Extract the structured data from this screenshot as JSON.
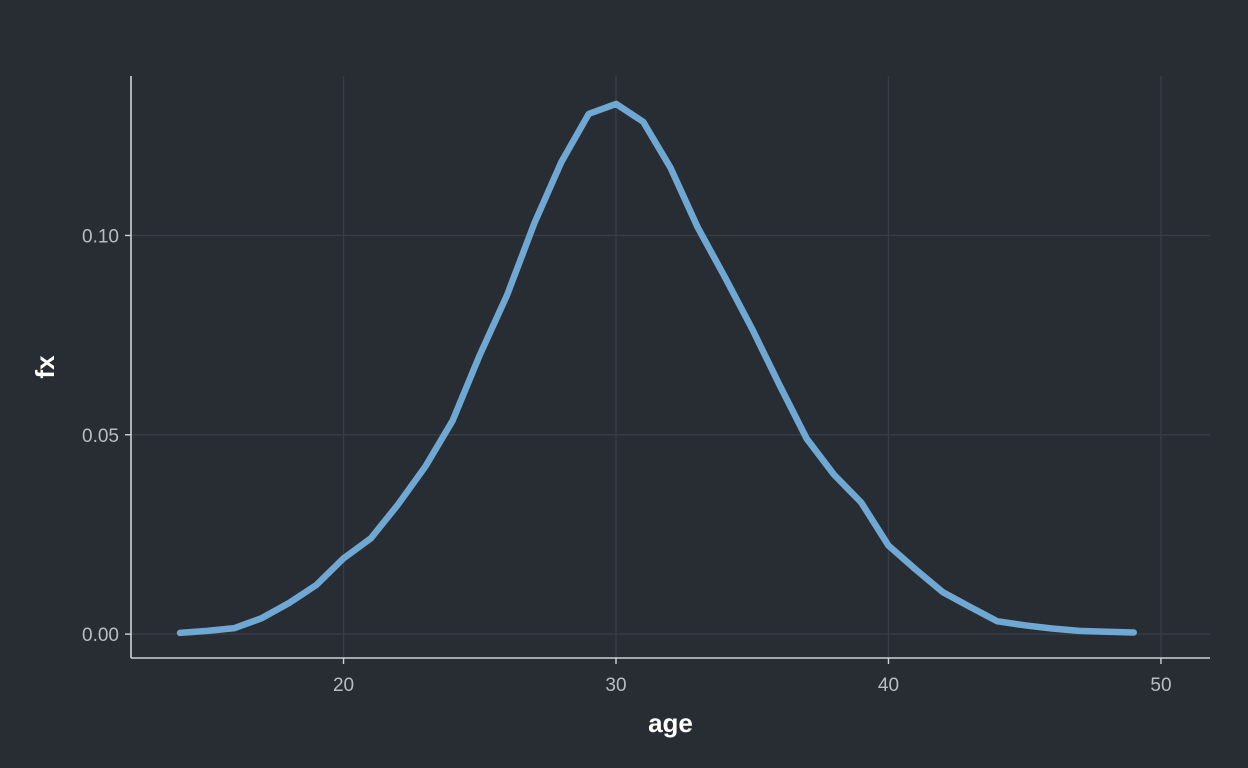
{
  "chart_data": {
    "type": "line",
    "title": "",
    "xlabel": "age",
    "ylabel": "fx",
    "xlim": [
      12.2,
      51.8
    ],
    "ylim": [
      -0.006,
      0.14
    ],
    "xticks": [
      20,
      30,
      40,
      50
    ],
    "yticks": [
      0.0,
      0.05,
      0.1
    ],
    "ytick_labels": [
      "0.00",
      "0.05",
      "0.10"
    ],
    "grid": true,
    "legend": "none",
    "line_color": "#6fa8d3",
    "background": "#282c33",
    "series": [
      {
        "x": [
          14,
          15,
          16,
          17,
          18,
          19,
          20,
          21,
          22,
          23,
          24,
          25,
          26,
          27,
          28,
          29,
          30,
          31,
          32,
          33,
          34,
          35,
          36,
          37,
          38,
          39,
          40,
          41,
          42,
          43,
          44,
          45,
          46,
          47,
          48,
          49
        ],
        "values": [
          0.0003,
          0.0008,
          0.0015,
          0.004,
          0.0078,
          0.0123,
          0.019,
          0.024,
          0.0325,
          0.042,
          0.0535,
          0.07,
          0.085,
          0.103,
          0.1185,
          0.1305,
          0.133,
          0.1285,
          0.117,
          0.102,
          0.0895,
          0.0765,
          0.0625,
          0.049,
          0.04,
          0.033,
          0.0222,
          0.0162,
          0.0105,
          0.0068,
          0.0032,
          0.0022,
          0.0014,
          0.0008,
          0.0006,
          0.0004
        ]
      }
    ]
  }
}
